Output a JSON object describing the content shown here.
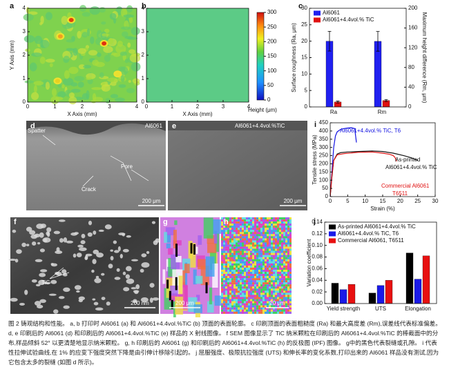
{
  "chart_data": [
    {
      "type": "heatmap",
      "panel": "a",
      "xlabel": "X Axis (mm)",
      "ylabel": "Y Axis (mm)",
      "xlim": [
        0,
        4
      ],
      "ylim": [
        0,
        4
      ],
      "xticks": [
        0,
        1,
        2,
        3,
        4
      ],
      "yticks": [
        0,
        1,
        2,
        3,
        4
      ]
    },
    {
      "type": "heatmap",
      "panel": "b",
      "xlabel": "X Axis (mm)",
      "xlim": [
        0,
        4
      ],
      "ylim": [
        0,
        4
      ],
      "xticks": [
        0,
        1,
        2,
        3,
        4
      ],
      "yticks": [
        0,
        1,
        2,
        3,
        4
      ],
      "colorbar": {
        "label": "Height (μm)",
        "lim": [
          0,
          300
        ],
        "ticks": [
          0,
          50,
          100,
          150,
          200,
          250,
          300
        ]
      }
    },
    {
      "type": "bar",
      "panel": "c",
      "ylabel": "Surface roughness (Ra, μm)",
      "y2label": "Maximum height difference (Rm, μm)",
      "categories": [
        "Ra",
        "Rm"
      ],
      "category_axes": [
        "y",
        "y2"
      ],
      "ylim": [
        0,
        30
      ],
      "yticks": [
        0,
        5,
        10,
        15,
        20,
        25,
        30
      ],
      "y2lim": [
        0,
        200
      ],
      "y2ticks": [
        0,
        40,
        80,
        120,
        160,
        200
      ],
      "series": [
        {
          "name": "Al6061",
          "color": "#2020f0",
          "values": [
            20,
            133
          ],
          "errors": [
            3,
            20
          ]
        },
        {
          "name": "Al6061+4.4vol.% TiC",
          "color": "#e01010",
          "values": [
            1.5,
            13
          ],
          "errors": [
            0.3,
            2
          ]
        }
      ],
      "legend": "upper left"
    },
    {
      "type": "line",
      "panel": "i",
      "xlabel": "Strain (%)",
      "ylabel": "Tensile stress (MPa)",
      "xlim": [
        0,
        30
      ],
      "ylim": [
        0,
        450
      ],
      "xticks": [
        0,
        5,
        10,
        15,
        20,
        25,
        30
      ],
      "yticks": [
        0,
        50,
        100,
        150,
        200,
        250,
        300,
        350,
        400,
        450
      ],
      "series": [
        {
          "color": "#1010e0",
          "x": [
            0,
            0.5,
            1,
            1.5,
            2,
            3,
            4,
            5,
            6,
            7,
            7.5
          ],
          "values": [
            0,
            150,
            300,
            370,
            395,
            410,
            415,
            418,
            420,
            415,
            330
          ]
        },
        {
          "color": "#111111",
          "x": [
            0,
            0.5,
            1,
            2,
            3,
            5,
            8,
            12,
            15,
            18,
            21,
            23,
            24,
            25
          ],
          "values": [
            0,
            120,
            220,
            260,
            268,
            272,
            275,
            278,
            275,
            265,
            250,
            238,
            230,
            220
          ]
        },
        {
          "color": "#e01010",
          "x": [
            0,
            0.5,
            1,
            2,
            4,
            8,
            12,
            15,
            17,
            18,
            18.5,
            19
          ],
          "values": [
            0,
            130,
            220,
            255,
            262,
            270,
            272,
            265,
            258,
            250,
            240,
            215
          ]
        }
      ],
      "annotations": [
        "Al6061+4.4vol.% TiC, T6",
        "As-printed",
        "Al6061+4.4vol.% TiC",
        "Commercial Al6061",
        "T6511"
      ]
    },
    {
      "type": "bar",
      "panel": "j",
      "ylabel": "Variation coefficient",
      "categories": [
        "Yield strength",
        "UTS",
        "Elongation"
      ],
      "ylim": [
        0,
        0.14
      ],
      "yticks": [
        {
          "value": 0,
          "label": "0.00"
        },
        {
          "value": 0.02,
          "label": "0.02"
        },
        {
          "value": 0.04,
          "label": "0.04"
        },
        {
          "value": 0.06,
          "label": "0.06"
        },
        {
          "value": 0.08,
          "label": "0.08"
        },
        {
          "value": 0.1,
          "label": "0.10"
        },
        {
          "value": 0.12,
          "label": "0.12"
        },
        {
          "value": 0.14,
          "label": "0.14"
        }
      ],
      "series": [
        {
          "name": "As-printed Al6061+4.4vol.% TiC",
          "color": "#000000",
          "values": [
            0.035,
            0.018,
            0.087
          ]
        },
        {
          "name": "Al6061+4.4vol.% TiC, T6",
          "color": "#1a1ae8",
          "values": [
            0.024,
            0.031,
            0.042
          ]
        },
        {
          "name": "Commercial Al6061, T6511",
          "color": "#e81010",
          "values": [
            0.033,
            0.04,
            0.082
          ]
        }
      ],
      "legend": "upper left"
    }
  ],
  "images": [
    {
      "panel": "d",
      "labels": [
        "Al6061",
        "Spatter",
        "Pore",
        "Crack"
      ],
      "scale_bar": "200 μm"
    },
    {
      "panel": "e",
      "labels": [
        "Al6061+4.4vol.%TiC"
      ],
      "scale_bar": "200 μm"
    },
    {
      "panel": "f",
      "labels": [
        "TiC"
      ],
      "scale_bar": "200 nm"
    },
    {
      "panel": "g",
      "labels": [],
      "scale_bar": "200 μm"
    },
    {
      "panel": "h",
      "labels": [],
      "scale_bar": "20 μm"
    }
  ],
  "caption": "图 2 铸观结构和性能。 a, b 打印时 Al6061 (a) 和 Al6061+4.4vol.%TiC (b) 顶面的表面轮廓。 c 印刷顶面的表面粗糙度 (Ra) 和最大高度差 (Rm),误差线代表标准偏差。 d, e 印刷后的 Al6061 (d) 和印刷后的 Al6061+4.4vol.%TiC (e) 样品的 X 射线图像。 f SEM 图像显示了 TiC 纳米颗粒在印刷后的 Al6061+4.4vol.%TiC 的棒截面中的分布,样品倾斜 52° 以更清楚地显示纳米颗粒。 g, h 印刷后的 Al6061 (g) 和印刷后的 Al6061+4.4vol.%TiC (h) 的反极图 (IPF) 图像。 g中的黑色代表裂缝或孔隙。 i 代表性拉伸试验曲线,在 1% 的应变下强度突然下降是由引伸计移除引起的。 j 屈服强度、极限抗拉强度 (UTS) 和伸长率的变化系数,打印出来的 Al6061 样品没有测试,因为它包含太多的裂缝 (如图 d 所示)。"
}
